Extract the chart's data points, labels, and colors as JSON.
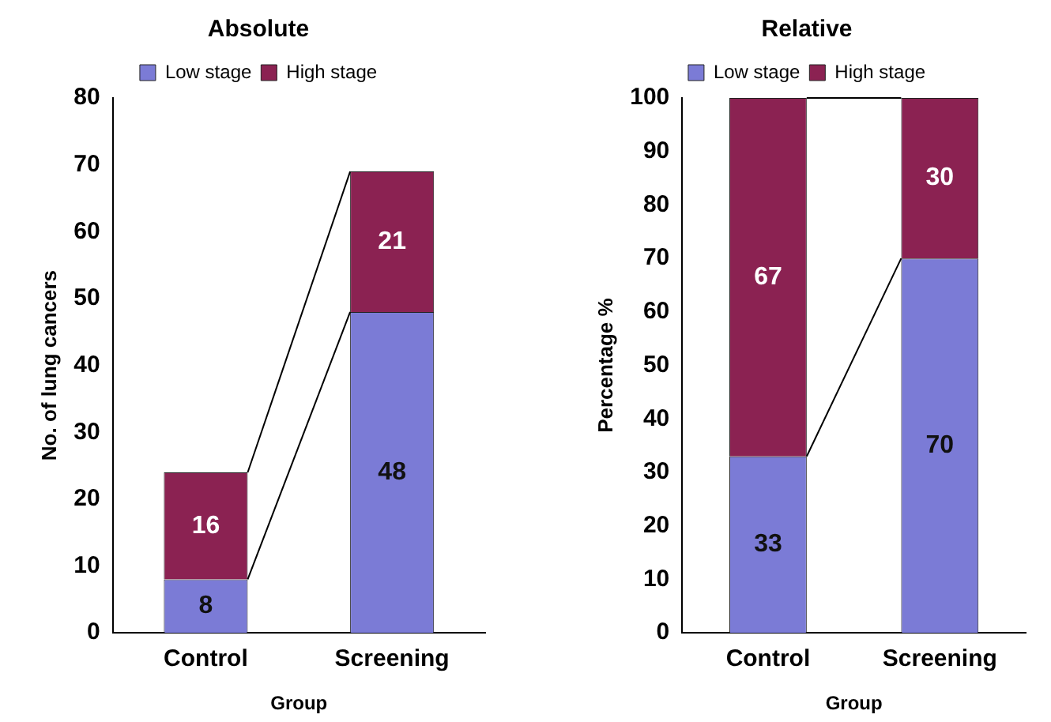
{
  "chart_data": [
    {
      "type": "bar",
      "title": "Absolute",
      "categories": [
        "Control",
        "Screening"
      ],
      "series": [
        {
          "name": "Low stage",
          "color": "#7b7bd6",
          "values": [
            8,
            48
          ]
        },
        {
          "name": "High stage",
          "color": "#8b2252",
          "values": [
            16,
            21
          ]
        }
      ],
      "stacked": true,
      "xlabel": "Group",
      "ylabel": "No. of lung cancers",
      "ylim": [
        0,
        80
      ],
      "yticks": [
        0,
        10,
        20,
        30,
        40,
        50,
        60,
        70,
        80
      ],
      "legend": "top",
      "data_labels": true
    },
    {
      "type": "bar",
      "title": "Relative",
      "categories": [
        "Control",
        "Screening"
      ],
      "series": [
        {
          "name": "Low stage",
          "color": "#7b7bd6",
          "values": [
            33,
            70
          ]
        },
        {
          "name": "High stage",
          "color": "#8b2252",
          "values": [
            67,
            30
          ]
        }
      ],
      "stacked": true,
      "xlabel": "Group",
      "ylabel": "Percentage %",
      "ylim": [
        0,
        100
      ],
      "yticks": [
        0,
        10,
        20,
        30,
        40,
        50,
        60,
        70,
        80,
        90,
        100
      ],
      "legend": "top",
      "data_labels": true
    }
  ]
}
